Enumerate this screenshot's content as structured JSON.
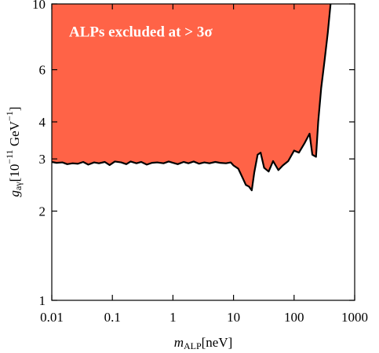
{
  "chart_data": {
    "type": "area",
    "annotation": "ALPs excluded at  > 3σ",
    "x_label": {
      "symbol": "m",
      "sub": "ALP",
      "unit": "[neV]"
    },
    "y_label": {
      "symbol": "g",
      "sub": "aγ",
      "unit_open": "[10",
      "exp": "−11",
      "unit_mid": " GeV",
      "exp2": "−1",
      "unit_close": "]"
    },
    "log_x": true,
    "log_y": true,
    "xlim": [
      0.01,
      1000
    ],
    "ylim": [
      1,
      10
    ],
    "xticks": [
      0.01,
      0.1,
      1,
      10,
      100,
      1000
    ],
    "yticks": [
      1,
      2,
      3,
      4,
      6,
      10
    ],
    "series": [
      {
        "color": "#ff6347",
        "line_color": "#000000",
        "x": [
          0.01,
          0.012,
          0.015,
          0.018,
          0.022,
          0.027,
          0.033,
          0.04,
          0.05,
          0.06,
          0.075,
          0.09,
          0.11,
          0.14,
          0.17,
          0.2,
          0.25,
          0.3,
          0.37,
          0.45,
          0.55,
          0.7,
          0.85,
          1,
          1.2,
          1.5,
          1.8,
          2.2,
          2.7,
          3.3,
          4,
          5,
          6,
          7.5,
          9,
          10,
          12,
          14,
          16,
          18,
          20,
          22,
          25,
          28,
          32,
          38,
          45,
          55,
          65,
          80,
          100,
          120,
          150,
          180,
          200,
          230,
          250,
          280,
          320,
          360,
          400
        ],
        "values": [
          2.93,
          2.91,
          2.92,
          2.88,
          2.9,
          2.89,
          2.93,
          2.87,
          2.92,
          2.9,
          2.93,
          2.86,
          2.94,
          2.92,
          2.88,
          2.94,
          2.9,
          2.93,
          2.87,
          2.91,
          2.92,
          2.9,
          2.94,
          2.91,
          2.88,
          2.93,
          2.9,
          2.94,
          2.89,
          2.92,
          2.9,
          2.93,
          2.91,
          2.9,
          2.92,
          2.85,
          2.78,
          2.6,
          2.45,
          2.42,
          2.35,
          2.7,
          3.1,
          3.15,
          2.8,
          2.72,
          2.95,
          2.75,
          2.85,
          2.95,
          3.2,
          3.15,
          3.4,
          3.65,
          3.1,
          3.05,
          4.0,
          5.2,
          6.5,
          8.0,
          10
        ]
      }
    ]
  }
}
